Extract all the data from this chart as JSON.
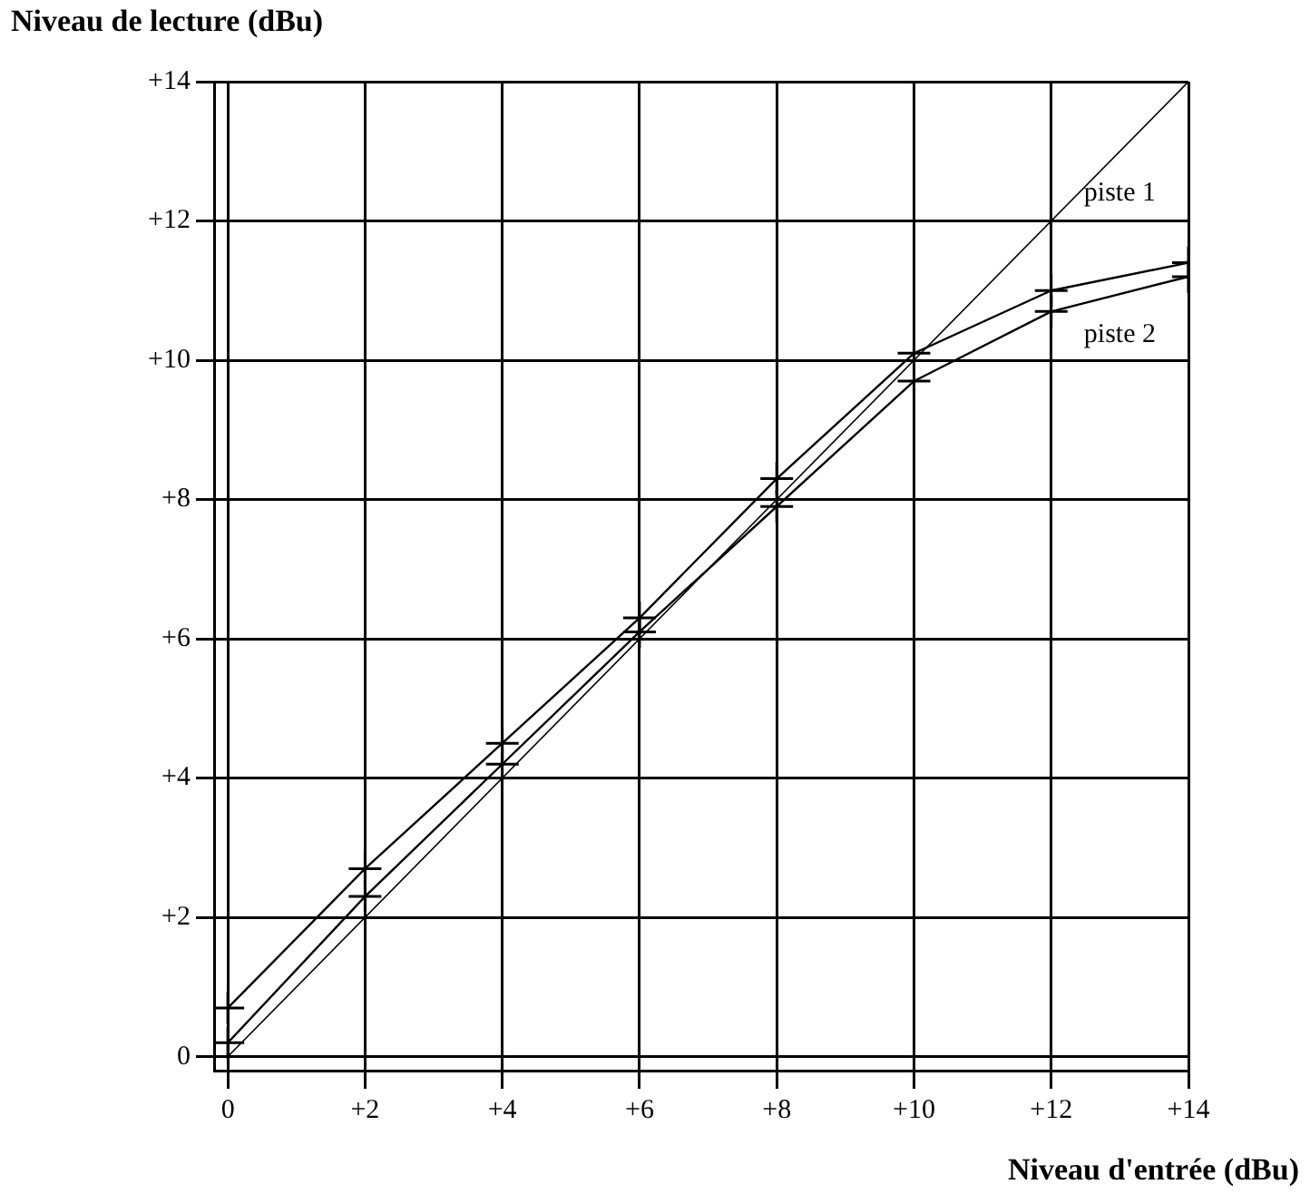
{
  "chart_data": {
    "type": "line",
    "ylabel": "Niveau de lecture (dBu)",
    "xlabel": "Niveau d'entrée (dBu)",
    "xlim": [
      -0.2,
      14
    ],
    "ylim": [
      -0.2,
      14
    ],
    "xticks": [
      0,
      {
        "value": 2,
        "label": "+2"
      },
      {
        "value": 4,
        "label": "+4"
      },
      {
        "value": 6,
        "label": "+6"
      },
      {
        "value": 8,
        "label": "+8"
      },
      {
        "value": 10,
        "label": "+10"
      },
      {
        "value": 12,
        "label": "+12"
      },
      {
        "value": 14,
        "label": "+14"
      }
    ],
    "yticks": [
      0,
      {
        "value": 2,
        "label": "+2"
      },
      {
        "value": 4,
        "label": "+4"
      },
      {
        "value": 6,
        "label": "+6"
      },
      {
        "value": 8,
        "label": "+8"
      },
      {
        "value": 10,
        "label": "+10"
      },
      {
        "value": 12,
        "label": "+12"
      },
      {
        "value": 14,
        "label": "+14"
      }
    ],
    "grid": true,
    "legend": false,
    "line_style": "solid",
    "series": [
      {
        "x": [
          0,
          14
        ],
        "values": [
          0,
          14
        ],
        "color": "#000000",
        "marker": "none"
      },
      {
        "name": "piste 1",
        "x": [
          0,
          2,
          4,
          6,
          8,
          10,
          12,
          14
        ],
        "values": [
          0.7,
          2.7,
          4.5,
          6.3,
          8.3,
          10.1,
          11.0,
          11.4
        ],
        "color": "#000000",
        "marker": "cross"
      },
      {
        "name": "piste 2",
        "x": [
          0,
          2,
          4,
          6,
          8,
          10,
          12,
          14
        ],
        "values": [
          0.2,
          2.3,
          4.2,
          6.1,
          7.9,
          9.7,
          10.7,
          11.2
        ],
        "color": "#000000",
        "marker": "cross"
      }
    ]
  }
}
